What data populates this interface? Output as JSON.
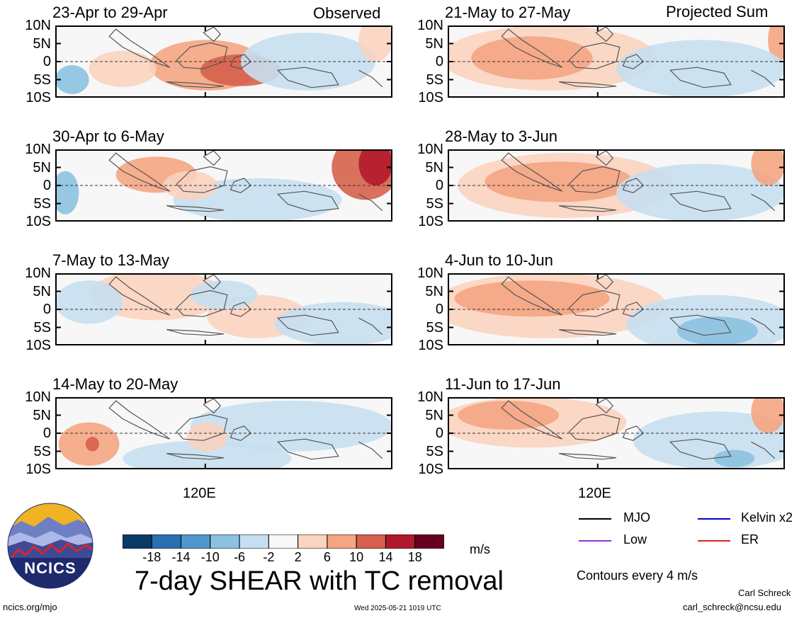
{
  "header": {
    "observed_label": "Observed",
    "projected_label": "Projected Sum"
  },
  "lat_labels": [
    "10N",
    "5N",
    "0",
    "5S",
    "10S"
  ],
  "lon_label": "120E",
  "panels": [
    {
      "title": "23-Apr to 29-Apr",
      "group": "observed"
    },
    {
      "title": "30-Apr to 6-May",
      "group": "observed"
    },
    {
      "title": "7-May to 13-May",
      "group": "observed"
    },
    {
      "title": "14-May to 20-May",
      "group": "observed"
    },
    {
      "title": "21-May to 27-May",
      "group": "projected"
    },
    {
      "title": "28-May to 3-Jun",
      "group": "projected"
    },
    {
      "title": "4-Jun to 10-Jun",
      "group": "projected"
    },
    {
      "title": "11-Jun to 17-Jun",
      "group": "projected"
    }
  ],
  "colorbar": {
    "ticks": [
      "-18",
      "-14",
      "-10",
      "-6",
      "-2",
      "2",
      "6",
      "10",
      "14",
      "18"
    ],
    "colors": [
      "#0c3a66",
      "#2a6fb3",
      "#4f98cc",
      "#8cc2e0",
      "#c6dff0",
      "#f7f7f7",
      "#fbd3bf",
      "#f4a582",
      "#d6604d",
      "#b2182b",
      "#67001f"
    ],
    "units": "m/s"
  },
  "title": "7-day SHEAR with TC removal",
  "legend": {
    "items": [
      {
        "label": "MJO",
        "color": "#000000"
      },
      {
        "label": "Kelvin x2",
        "color": "#0000cc"
      },
      {
        "label": "Low",
        "color": "#9933cc"
      },
      {
        "label": "ER",
        "color": "#dd2222"
      }
    ],
    "contours_note": "Contours every 4 m/s"
  },
  "logo": {
    "text": "NCICS"
  },
  "footer": {
    "website": "ncics.org/mjo",
    "timestamp": "Wed 2025-05-21 1019 UTC",
    "author": "Carl Schreck",
    "email": "carl_schreck@ncsu.edu"
  }
}
